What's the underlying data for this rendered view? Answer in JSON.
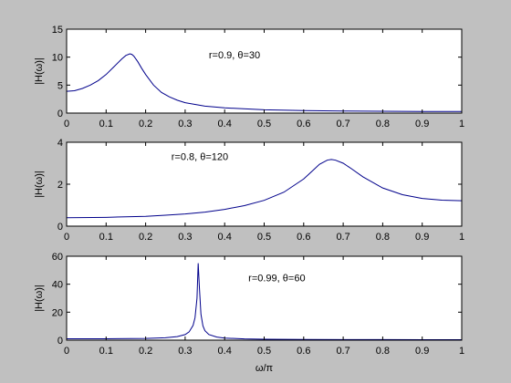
{
  "figure": {
    "background": "#c0c0c0",
    "axes_background": "#ffffff",
    "line_color": "#00008b"
  },
  "chart_data": [
    {
      "type": "line",
      "title": "",
      "xlabel": "",
      "ylabel": "|H(ω)|",
      "xlim": [
        0,
        1
      ],
      "ylim": [
        0,
        15
      ],
      "xticks": [
        0,
        0.1,
        0.2,
        0.3,
        0.4,
        0.5,
        0.6,
        0.7,
        0.8,
        0.9,
        1
      ],
      "xtick_labels": [
        "0",
        "0.1",
        "0.2",
        "0.3",
        "0.4",
        "0.5",
        "0.6",
        "0.7",
        "0.8",
        "0.9",
        "1"
      ],
      "yticks": [
        0,
        5,
        10,
        15
      ],
      "ytick_labels": [
        "0",
        "5",
        "10",
        "15"
      ],
      "annotation": {
        "text": "r=0.9, θ=30",
        "x": 0.36,
        "y": 9.8
      },
      "series": [
        {
          "x": [
            0,
            0.02,
            0.04,
            0.06,
            0.08,
            0.1,
            0.12,
            0.14,
            0.15,
            0.16,
            0.165,
            0.17,
            0.18,
            0.19,
            0.2,
            0.22,
            0.24,
            0.26,
            0.28,
            0.3,
            0.35,
            0.4,
            0.5,
            0.6,
            0.7,
            0.8,
            0.9,
            1
          ],
          "y": [
            3.9,
            4.0,
            4.4,
            5.0,
            5.8,
            6.9,
            8.3,
            9.7,
            10.3,
            10.6,
            10.5,
            10.2,
            9.2,
            8.0,
            6.9,
            5.0,
            3.7,
            2.9,
            2.3,
            1.85,
            1.25,
            0.93,
            0.6,
            0.45,
            0.37,
            0.32,
            0.29,
            0.28
          ]
        }
      ]
    },
    {
      "type": "line",
      "title": "",
      "xlabel": "",
      "ylabel": "|H(ω)|",
      "xlim": [
        0,
        1
      ],
      "ylim": [
        0,
        4
      ],
      "xticks": [
        0,
        0.1,
        0.2,
        0.3,
        0.4,
        0.5,
        0.6,
        0.7,
        0.8,
        0.9,
        1
      ],
      "xtick_labels": [
        "0",
        "0.1",
        "0.2",
        "0.3",
        "0.4",
        "0.5",
        "0.6",
        "0.7",
        "0.8",
        "0.9",
        "1"
      ],
      "yticks": [
        0,
        2,
        4
      ],
      "ytick_labels": [
        "0",
        "2",
        "4"
      ],
      "annotation": {
        "text": "r=0.8, θ=120",
        "x": 0.265,
        "y": 3.15
      },
      "series": [
        {
          "x": [
            0,
            0.1,
            0.2,
            0.25,
            0.3,
            0.35,
            0.4,
            0.45,
            0.5,
            0.55,
            0.6,
            0.62,
            0.64,
            0.66,
            0.67,
            0.68,
            0.7,
            0.72,
            0.75,
            0.8,
            0.85,
            0.9,
            0.95,
            1
          ],
          "y": [
            0.4,
            0.42,
            0.47,
            0.52,
            0.58,
            0.67,
            0.8,
            0.98,
            1.23,
            1.62,
            2.25,
            2.6,
            2.95,
            3.15,
            3.18,
            3.15,
            3.0,
            2.75,
            2.35,
            1.82,
            1.5,
            1.32,
            1.24,
            1.21
          ]
        }
      ]
    },
    {
      "type": "line",
      "title": "",
      "xlabel": "ω/π",
      "ylabel": "|H(ω)|",
      "xlim": [
        0,
        1
      ],
      "ylim": [
        0,
        60
      ],
      "xticks": [
        0,
        0.1,
        0.2,
        0.3,
        0.4,
        0.5,
        0.6,
        0.7,
        0.8,
        0.9,
        1
      ],
      "xtick_labels": [
        "0",
        "0.1",
        "0.2",
        "0.3",
        "0.4",
        "0.5",
        "0.6",
        "0.7",
        "0.8",
        "0.9",
        "1"
      ],
      "yticks": [
        0,
        20,
        40,
        60
      ],
      "ytick_labels": [
        "0",
        "20",
        "40",
        "60"
      ],
      "annotation": {
        "text": "r=0.99, θ=60",
        "x": 0.46,
        "y": 42
      },
      "series": [
        {
          "x": [
            0,
            0.1,
            0.2,
            0.25,
            0.28,
            0.3,
            0.31,
            0.32,
            0.325,
            0.33,
            0.333,
            0.336,
            0.34,
            0.345,
            0.35,
            0.36,
            0.38,
            0.4,
            0.45,
            0.5,
            0.6,
            0.7,
            0.8,
            0.9,
            1
          ],
          "y": [
            1.0,
            1.0,
            1.2,
            1.7,
            2.5,
            4.0,
            5.9,
            10.5,
            16,
            30,
            55,
            38,
            18.5,
            10.2,
            6.8,
            4.0,
            2.2,
            1.5,
            0.9,
            0.65,
            0.45,
            0.4,
            0.37,
            0.35,
            0.35
          ]
        }
      ]
    }
  ]
}
